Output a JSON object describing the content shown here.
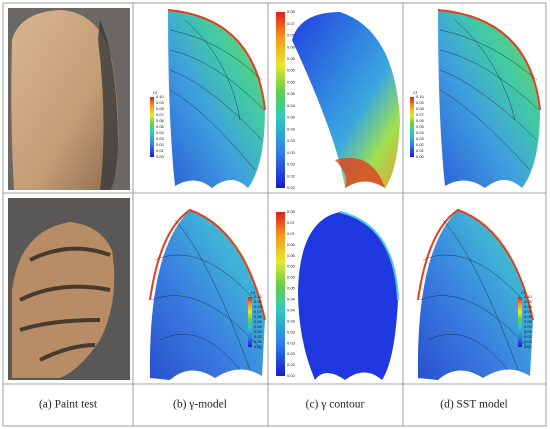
{
  "captions": [
    "(a) Paint test",
    "(b) γ-model",
    "(c) γ contour",
    "(d) SST model"
  ],
  "cf_legend": {
    "title": "Cf",
    "ticks": [
      "0.10",
      "0.09",
      "0.08",
      "0.07",
      "0.06",
      "0.05",
      "0.04",
      "0.03",
      "0.02",
      "0.01",
      "0.00"
    ]
  },
  "contour_legend": {
    "ticks": [
      "0.08",
      "0.07",
      "0.07",
      "0.06",
      "0.06",
      "0.05",
      "0.05",
      "0.05",
      "0.04",
      "0.04",
      "0.04",
      "0.03",
      "0.03",
      "0.03",
      "0.02",
      "0.02"
    ]
  }
}
